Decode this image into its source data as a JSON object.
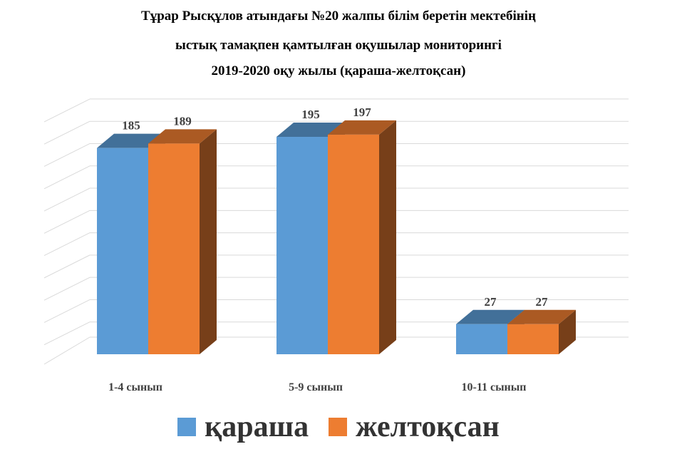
{
  "title_lines": [
    "Тұрар Рысқұлов атындағы №20 жалпы білім беретін мектебінің",
    "ыстық тамақпен қамтылған оқушылар мониторингі",
    "2019-2020 оқу жылы (қараша-желтоқсан)"
  ],
  "chart_data": {
    "type": "bar",
    "title": "Тұрар Рысқұлов атындағы №20 жалпы білім беретін мектебінің ыстық тамақпен қамтылған оқушылар мониторингі 2019-2020 оқу жылы (қараша-желтоқсан)",
    "categories": [
      "1-4 сынып",
      "5-9 сынып",
      "10-11 сынып"
    ],
    "series": [
      {
        "name": "қараша",
        "values": [
          185,
          195,
          27
        ],
        "color": "#5B9BD5"
      },
      {
        "name": "желтоқсан",
        "values": [
          189,
          197,
          27
        ],
        "color": "#ED7D31"
      }
    ],
    "ylim": [
      0,
      220
    ],
    "gridlines": true,
    "style": "3d-clustered-column",
    "legend": "bottom"
  }
}
